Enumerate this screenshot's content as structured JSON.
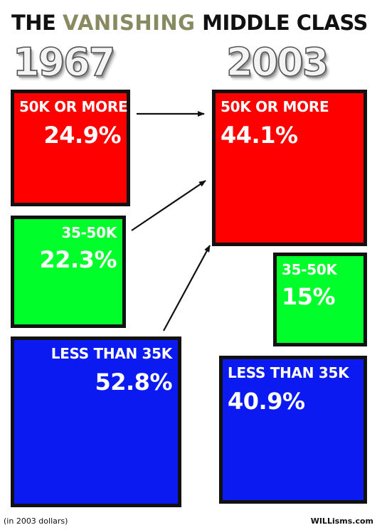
{
  "title": {
    "part1": "THE ",
    "highlight": "VANISHING",
    "part2": " MIDDLE CLASS"
  },
  "years": {
    "left": "1967",
    "right": "2003"
  },
  "boxes_1967": {
    "high": {
      "label": "50K OR MORE",
      "value": "24.9%"
    },
    "middle": {
      "label": "35-50K",
      "value": "22.3%"
    },
    "low": {
      "label": "LESS THAN 35K",
      "value": "52.8%"
    }
  },
  "boxes_2003": {
    "high": {
      "label": "50K OR MORE",
      "value": "44.1%"
    },
    "middle": {
      "label": "35-50K",
      "value": "15%"
    },
    "low": {
      "label": "LESS THAN 35K",
      "value": "40.9%"
    }
  },
  "colors": {
    "high": "#ff0000",
    "middle": "#00ff2a",
    "low": "#0a1af0",
    "border": "#111111",
    "title_highlight": "#8a8a62"
  },
  "footer": {
    "note": "(in 2003 dollars)",
    "brand": "WILLisms.com"
  }
}
